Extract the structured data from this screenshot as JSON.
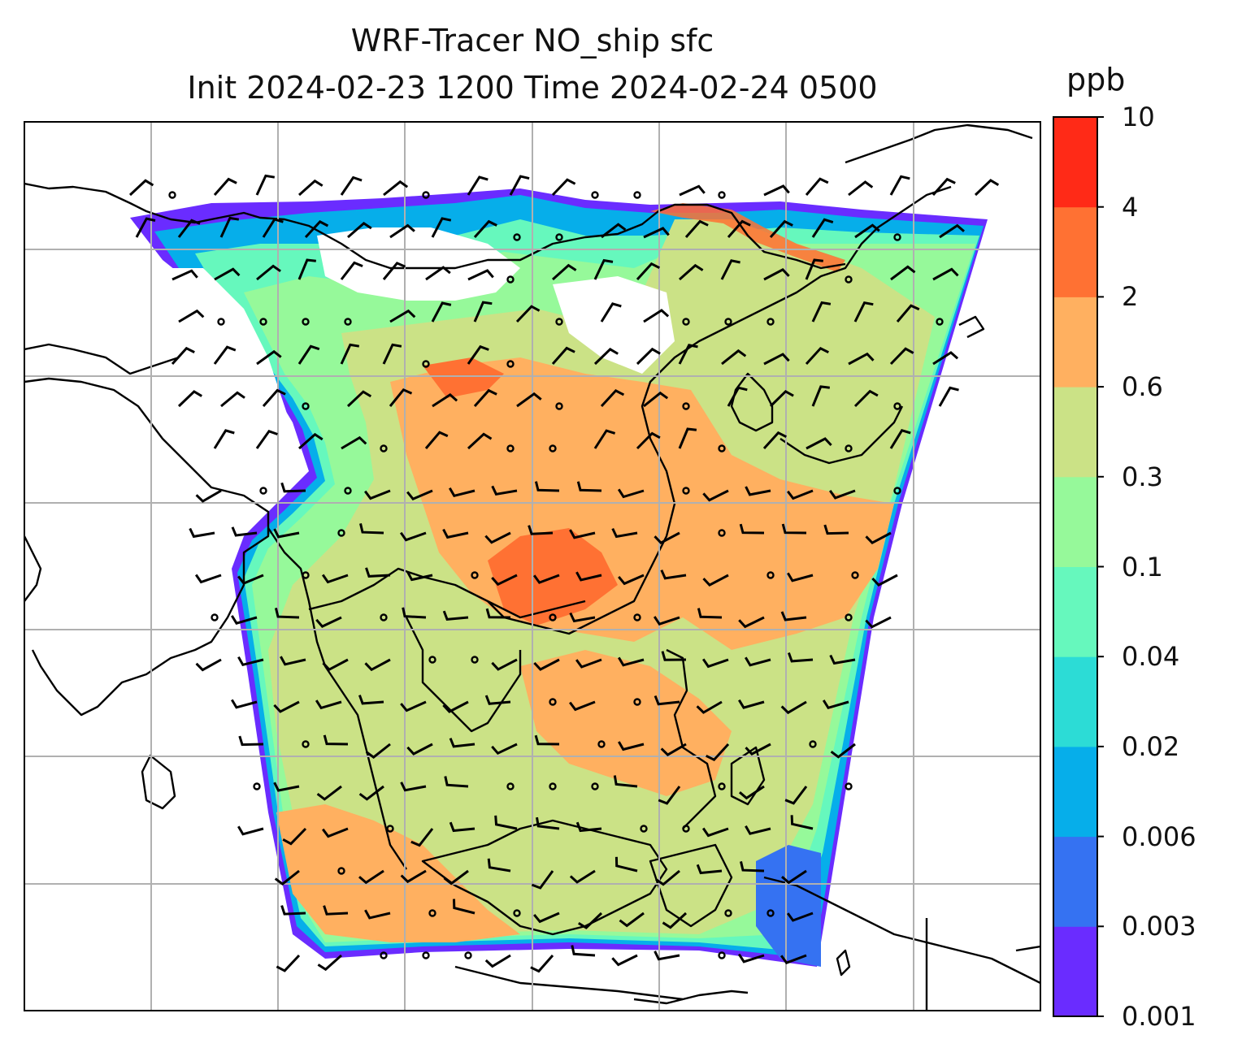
{
  "title": {
    "line1": "WRF-Tracer NO_ship sfc",
    "line2": "Init 2024-02-23 1200 Time 2024-02-24 0500"
  },
  "colorbar": {
    "unit_label": "ppb",
    "levels": [
      "0.001",
      "0.003",
      "0.006",
      "0.02",
      "0.04",
      "0.1",
      "0.3",
      "0.6",
      "2",
      "4",
      "10"
    ],
    "colors": [
      "#6a2cff",
      "#3572f2",
      "#06aeea",
      "#2cdcd6",
      "#66f8bd",
      "#96f99a",
      "#cbe286",
      "#ffb060",
      "#ff7133",
      "#ff2a17"
    ]
  },
  "chart_data": {
    "type": "heatmap",
    "title": "WRF-Tracer NO_ship sfc / Init 2024-02-23 1200 Time 2024-02-24 0500",
    "variable": "NO_ship surface concentration",
    "unit": "ppb",
    "contour_levels": [
      0.001,
      0.003,
      0.006,
      0.02,
      0.04,
      0.1,
      0.3,
      0.6,
      2,
      4,
      10
    ],
    "overlays": [
      "coastlines",
      "country borders",
      "lat/lon gridlines",
      "wind barbs"
    ],
    "grid": true,
    "legend": "colorbar right"
  }
}
